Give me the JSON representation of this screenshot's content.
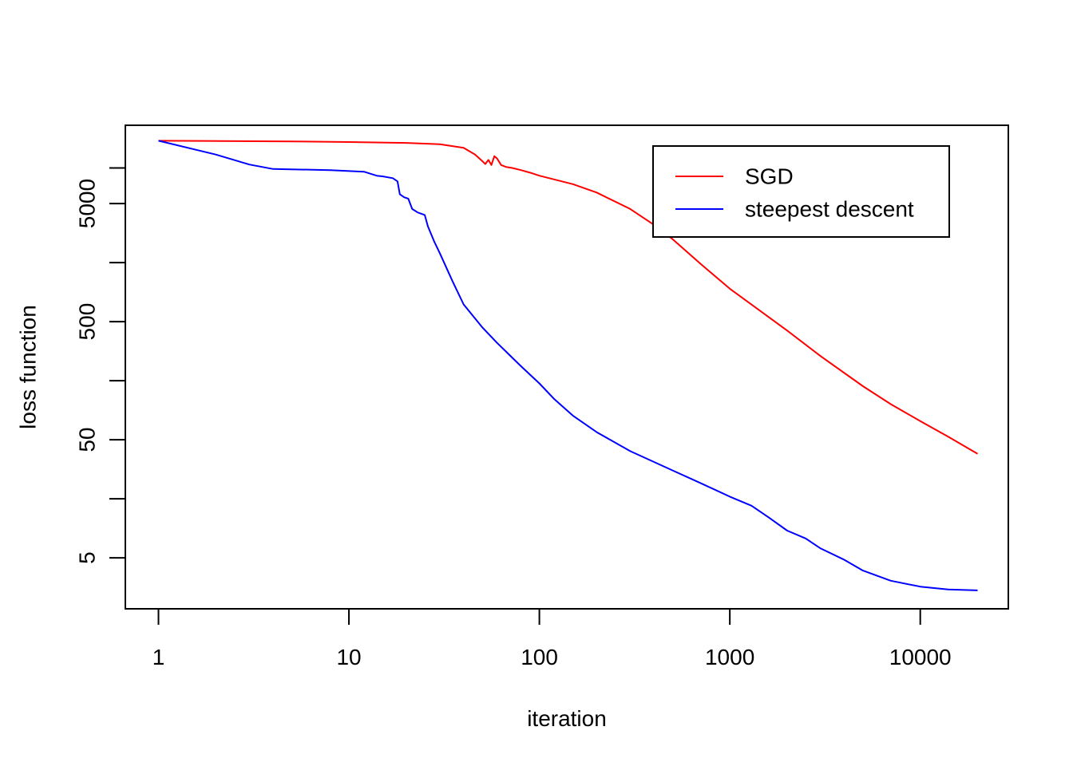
{
  "chart_data": {
    "type": "line",
    "title": "",
    "xlabel": "iteration",
    "ylabel": "loss function",
    "x_scale": "log",
    "y_scale": "log",
    "xlim": [
      0.67,
      29000
    ],
    "ylim": [
      1.85,
      23000
    ],
    "grid": false,
    "legend_position": "top-right",
    "x_ticks": [
      {
        "value": 1,
        "label": "1"
      },
      {
        "value": 10,
        "label": "10"
      },
      {
        "value": 100,
        "label": "100"
      },
      {
        "value": 1000,
        "label": "1000"
      },
      {
        "value": 10000,
        "label": "10000"
      }
    ],
    "y_ticks": [
      {
        "value": 5,
        "label": "5"
      },
      {
        "value": 15.8,
        "label": ""
      },
      {
        "value": 50,
        "label": "50"
      },
      {
        "value": 158,
        "label": ""
      },
      {
        "value": 500,
        "label": "500"
      },
      {
        "value": 1580,
        "label": ""
      },
      {
        "value": 5000,
        "label": "5000"
      },
      {
        "value": 10000,
        "label": ""
      }
    ],
    "series": [
      {
        "name": "SGD",
        "color": "#ff0000",
        "points": [
          [
            1,
            17000
          ],
          [
            5,
            16800
          ],
          [
            10,
            16600
          ],
          [
            20,
            16300
          ],
          [
            30,
            15900
          ],
          [
            40,
            14800
          ],
          [
            46,
            13000
          ],
          [
            50,
            11500
          ],
          [
            52,
            10800
          ],
          [
            54,
            11700
          ],
          [
            56,
            10600
          ],
          [
            58,
            12600
          ],
          [
            60,
            12000
          ],
          [
            63,
            10600
          ],
          [
            67,
            10200
          ],
          [
            72,
            10000
          ],
          [
            80,
            9600
          ],
          [
            90,
            9100
          ],
          [
            100,
            8600
          ],
          [
            150,
            7300
          ],
          [
            200,
            6200
          ],
          [
            300,
            4500
          ],
          [
            400,
            3300
          ],
          [
            500,
            2500
          ],
          [
            700,
            1550
          ],
          [
            1000,
            950
          ],
          [
            2000,
            420
          ],
          [
            3000,
            255
          ],
          [
            5000,
            142
          ],
          [
            7000,
            100
          ],
          [
            10000,
            72
          ],
          [
            14000,
            53
          ],
          [
            20000,
            38
          ]
        ]
      },
      {
        "name": "steepest descent",
        "color": "#0000ff",
        "points": [
          [
            1,
            17000
          ],
          [
            2,
            13000
          ],
          [
            3,
            10700
          ],
          [
            4,
            9800
          ],
          [
            8,
            9600
          ],
          [
            12,
            9300
          ],
          [
            14,
            8600
          ],
          [
            15,
            8500
          ],
          [
            17,
            8200
          ],
          [
            18,
            7700
          ],
          [
            18.5,
            6000
          ],
          [
            19.5,
            5650
          ],
          [
            20.5,
            5500
          ],
          [
            21.5,
            4500
          ],
          [
            23,
            4200
          ],
          [
            25,
            4000
          ],
          [
            26,
            3200
          ],
          [
            28,
            2400
          ],
          [
            30,
            1900
          ],
          [
            35,
            1100
          ],
          [
            40,
            700
          ],
          [
            50,
            450
          ],
          [
            60,
            330
          ],
          [
            80,
            210
          ],
          [
            100,
            150
          ],
          [
            120,
            110
          ],
          [
            150,
            80
          ],
          [
            200,
            58
          ],
          [
            300,
            40
          ],
          [
            500,
            27.5
          ],
          [
            700,
            21.5
          ],
          [
            1000,
            16.5
          ],
          [
            1300,
            13.8
          ],
          [
            1600,
            11
          ],
          [
            2000,
            8.5
          ],
          [
            2500,
            7.3
          ],
          [
            3000,
            6
          ],
          [
            4000,
            4.8
          ],
          [
            5000,
            3.9
          ],
          [
            7000,
            3.2
          ],
          [
            10000,
            2.85
          ],
          [
            14000,
            2.7
          ],
          [
            20000,
            2.65
          ]
        ]
      }
    ]
  }
}
